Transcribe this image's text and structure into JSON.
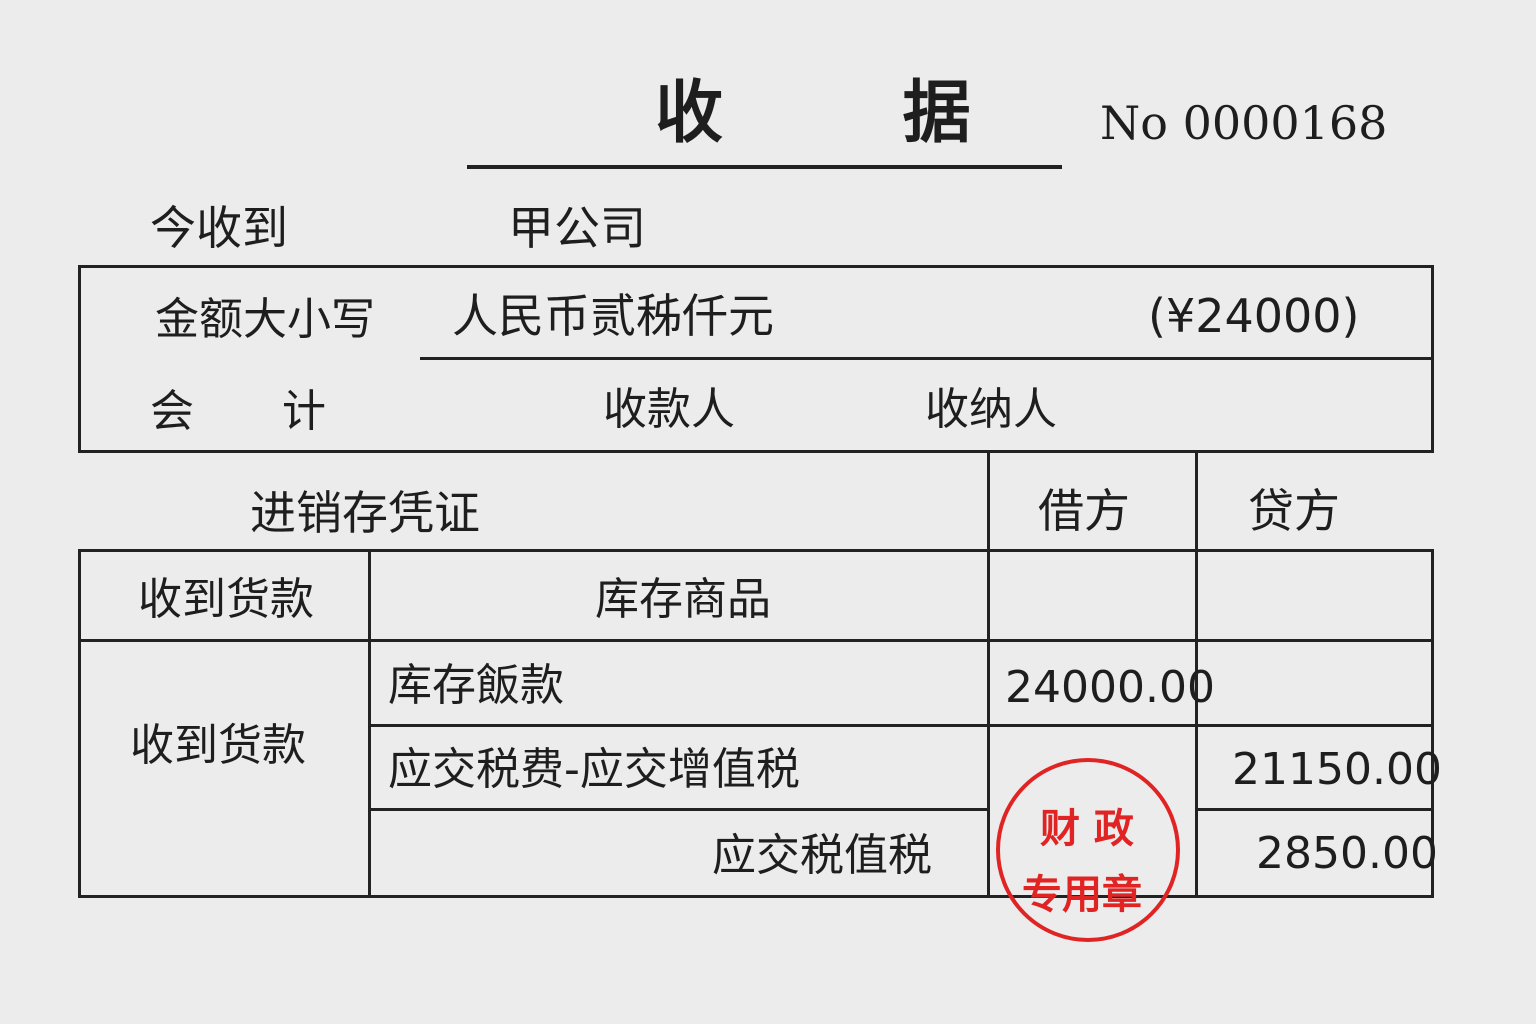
{
  "title": "收 据",
  "number": "No 0000168",
  "received_from_label": "今收到",
  "received_from": "甲公司",
  "amount_label": "金额大小写",
  "amount_words": "人民币贰秭仟元",
  "amount_figures": "(¥24000)",
  "accountant_label": "会　　计",
  "payee_label": "收款人",
  "cashier_label": "收纳人",
  "voucher": {
    "title": "进销存凭证",
    "debit_header": "借方",
    "credit_header": "贷方",
    "rows": [
      {
        "account": "收到货款",
        "item": "库存商品",
        "debit": "",
        "credit": ""
      },
      {
        "account": "收到货款",
        "item": "库存飯款",
        "debit": "24000.00",
        "credit": ""
      },
      {
        "account": "",
        "item": "应交税费-应交增值税",
        "debit": "",
        "credit": "21150.00"
      },
      {
        "account": "",
        "item": "应交税值税",
        "debit": "",
        "credit": "2850.00"
      }
    ]
  },
  "stamp": {
    "line1": "财 政",
    "line2": "专用章",
    "color": "#e02424"
  }
}
